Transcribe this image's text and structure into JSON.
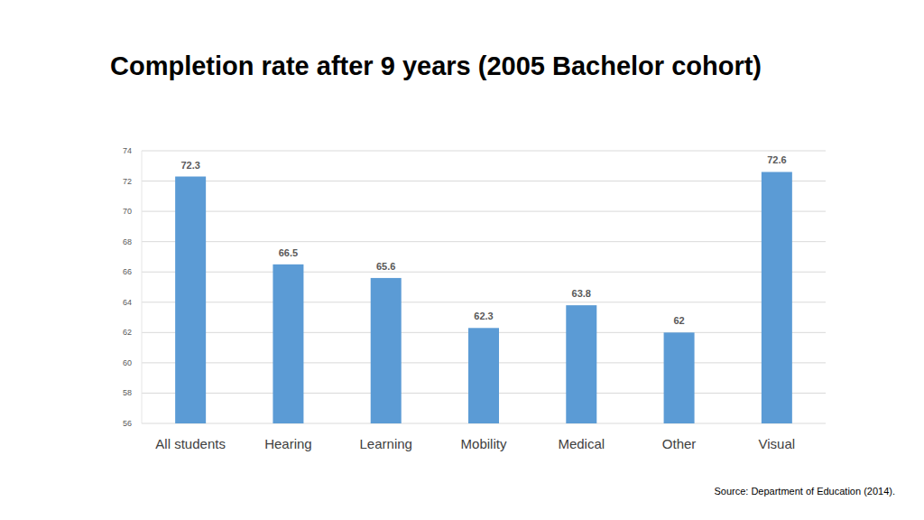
{
  "chart_data": {
    "type": "bar",
    "title": "Completion rate after 9 years (2005 Bachelor cohort)",
    "categories": [
      "All students",
      "Hearing",
      "Learning",
      "Mobility",
      "Medical",
      "Other",
      "Visual"
    ],
    "values": [
      72.3,
      66.5,
      65.6,
      62.3,
      63.8,
      62,
      72.6
    ],
    "color": "#5b9bd5",
    "ylim": [
      56,
      74
    ],
    "yticks": [
      56,
      58,
      60,
      62,
      64,
      66,
      68,
      70,
      72,
      74
    ],
    "grid": true,
    "data_labels": true,
    "source": "Source: Department of Education (2014)."
  }
}
